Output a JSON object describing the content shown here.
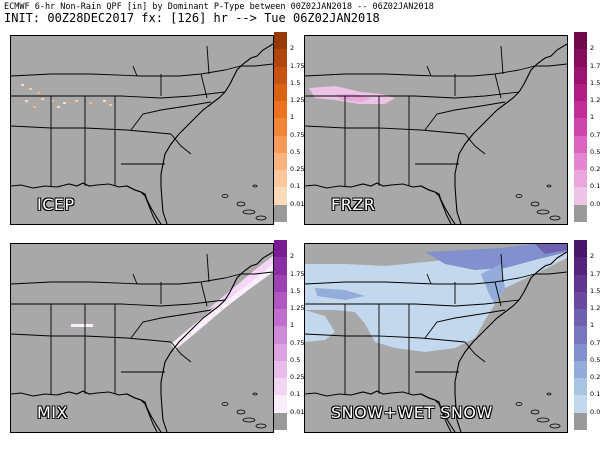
{
  "header": {
    "line1": "ECMWF 6-hr Non-Rain QPF [in] by Dominant P-Type between 00Z02JAN2018 -- 06Z02JAN2018",
    "line2": "INIT: 00Z28DEC2017 fx: [126] hr --> Tue 06Z02JAN2018"
  },
  "chart_data": {
    "type": "heatmap",
    "levels": [
      "0.01",
      "0.1",
      "0.25",
      "0.5",
      "0.75",
      "1",
      "1.25",
      "1.5",
      "1.75",
      "2"
    ],
    "panels": [
      {
        "name": "ICEP",
        "colors": [
          "#fddbb8",
          "#fcc79a",
          "#fbb27c",
          "#f99a58",
          "#f58638",
          "#ec7220",
          "#db6212",
          "#c7540e",
          "#b0460a",
          "#963807"
        ],
        "area": "trace amounts, scattered dots across lower Mississippi Valley"
      },
      {
        "name": "FRZR",
        "colors": [
          "#eec4e6",
          "#e9a7dc",
          "#e286cf",
          "#d965bf",
          "#ce45ac",
          "#c22e97",
          "#b01e83",
          "#9a1470",
          "#840d5e",
          "#6e0a4c"
        ],
        "area": "Tennessee / northern Alabama & Mississippi"
      },
      {
        "name": "MIX",
        "colors": [
          "#fbeefb",
          "#f2d6f4",
          "#e8bdec",
          "#dca3e3",
          "#cf89d9",
          "#c06fce",
          "#b057c2",
          "#9e41b4",
          "#8b2ea4",
          "#771c93"
        ],
        "area": "Carolinas to Virginia coastline band"
      },
      {
        "name": "SNOW+WET SNOW",
        "colors": [
          "#c3d8ec",
          "#a9c5e4",
          "#93acd9",
          "#8291cd",
          "#7877bf",
          "#7060b0",
          "#6a4aa0",
          "#61368f",
          "#55257d",
          "#48176b"
        ],
        "area": "Mid-Atlantic, Virginia, Tennessee Valley and Gulf coast"
      }
    ]
  }
}
